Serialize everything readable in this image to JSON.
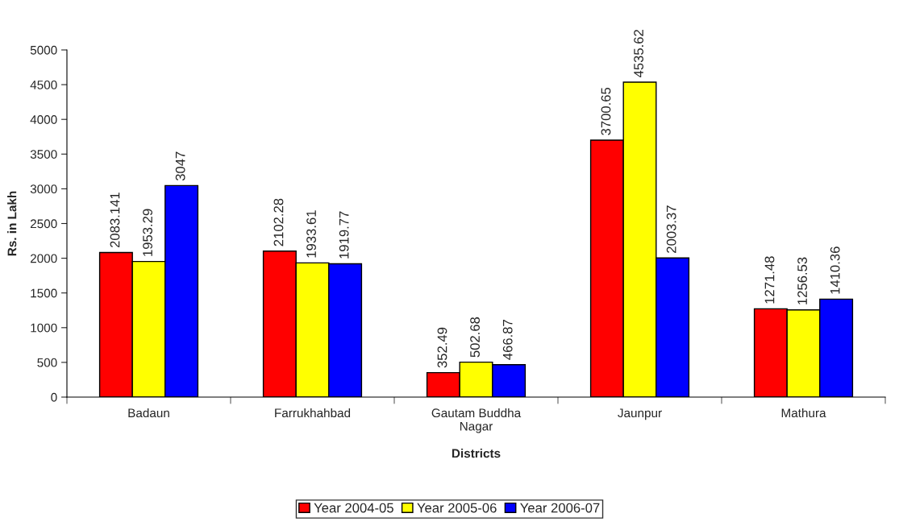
{
  "chart_data": {
    "type": "bar",
    "xlabel": "Districts",
    "ylabel": "Rs. in Lakh",
    "categories": [
      "Badaun",
      "Farrukhahbad",
      "Gautam Buddha\nNagar",
      "Jaunpur",
      "Mathura"
    ],
    "series": [
      {
        "name": "Year 2004-05",
        "color": "#ff0000",
        "values": [
          2083.141,
          2102.28,
          352.49,
          3700.65,
          1271.48
        ]
      },
      {
        "name": "Year 2005-06",
        "color": "#ffff00",
        "values": [
          1953.29,
          1933.61,
          502.68,
          4535.62,
          1256.53
        ]
      },
      {
        "name": "Year 2006-07",
        "color": "#0000ff",
        "values": [
          3047,
          1919.77,
          466.87,
          2003.37,
          1410.36
        ]
      }
    ],
    "ylim": [
      0,
      5000
    ],
    "yticks": [
      0,
      500,
      1000,
      1500,
      2000,
      2500,
      3000,
      3500,
      4000,
      4500,
      5000
    ],
    "data_labels": true,
    "grid": false,
    "legend": "bottom"
  }
}
